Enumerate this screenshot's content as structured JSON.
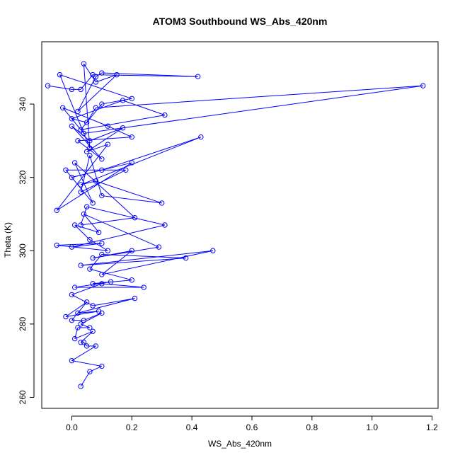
{
  "chart_data": {
    "type": "line",
    "title": "ATOM3 Southbound WS_Abs_420nm",
    "xlabel": "WS_Abs_420nm",
    "ylabel": "Theta (K)",
    "xlim": [
      -0.1,
      1.22
    ],
    "ylim": [
      257,
      357
    ],
    "x_ticks": [
      "0.0",
      "0.2",
      "0.4",
      "0.6",
      "0.8",
      "1.0",
      "1.2"
    ],
    "y_ticks": [
      "260",
      "280",
      "300",
      "320",
      "340"
    ],
    "grid": false,
    "marker": "open-circle",
    "colors": {
      "series": "#0000ff",
      "axes": "#000000"
    },
    "series": [
      {
        "points": [
          [
            -0.08,
            345
          ],
          [
            0.0,
            344
          ],
          [
            0.03,
            344
          ],
          [
            0.07,
            348
          ],
          [
            0.42,
            347.5
          ],
          [
            0.1,
            348.5
          ],
          [
            0.08,
            347.5
          ],
          [
            0.02,
            338
          ],
          [
            0.15,
            348
          ],
          [
            0.08,
            346
          ],
          [
            0.04,
            351
          ],
          [
            0.06,
            328
          ],
          [
            -0.04,
            348
          ],
          [
            0.2,
            341.5
          ],
          [
            0.1,
            340
          ],
          [
            0.03,
            333
          ],
          [
            0.31,
            337
          ],
          [
            0.17,
            341
          ],
          [
            0.0,
            336
          ],
          [
            0.05,
            335
          ],
          [
            0.08,
            339
          ],
          [
            1.17,
            345
          ],
          [
            0.04,
            332
          ],
          [
            -0.03,
            339
          ],
          [
            0.12,
            334
          ],
          [
            0.2,
            331
          ],
          [
            0.02,
            330
          ],
          [
            0.1,
            325
          ],
          [
            0.0,
            334
          ],
          [
            0.06,
            330
          ],
          [
            0.17,
            333.5
          ],
          [
            0.05,
            327
          ],
          [
            0.12,
            329
          ],
          [
            -0.05,
            311
          ],
          [
            0.2,
            324
          ],
          [
            0.0,
            320
          ],
          [
            0.1,
            322
          ],
          [
            0.43,
            331
          ],
          [
            0.03,
            318
          ],
          [
            0.08,
            319
          ],
          [
            0.3,
            313
          ],
          [
            0.1,
            315
          ],
          [
            0.06,
            326
          ],
          [
            0.03,
            316
          ],
          [
            0.18,
            322
          ],
          [
            -0.02,
            322
          ],
          [
            0.07,
            313
          ],
          [
            0.01,
            324
          ],
          [
            0.21,
            309
          ],
          [
            0.03,
            307
          ],
          [
            0.05,
            312
          ],
          [
            0.31,
            307
          ],
          [
            0.0,
            301
          ],
          [
            0.1,
            302
          ],
          [
            -0.05,
            301.5
          ],
          [
            0.12,
            300
          ],
          [
            0.06,
            303
          ],
          [
            0.01,
            307
          ],
          [
            0.09,
            305
          ],
          [
            0.04,
            310
          ],
          [
            0.29,
            301
          ],
          [
            0.07,
            298
          ],
          [
            0.2,
            300
          ],
          [
            0.1,
            293.5
          ],
          [
            0.47,
            300
          ],
          [
            0.03,
            296
          ],
          [
            0.38,
            298
          ],
          [
            0.1,
            299
          ],
          [
            0.06,
            295
          ],
          [
            0.2,
            292
          ],
          [
            0.07,
            291
          ],
          [
            0.13,
            291.5
          ],
          [
            0.01,
            290
          ],
          [
            0.24,
            290
          ],
          [
            0.1,
            291
          ],
          [
            0.0,
            288
          ],
          [
            0.07,
            285
          ],
          [
            0.21,
            287
          ],
          [
            0.02,
            283
          ],
          [
            0.09,
            283.5
          ],
          [
            -0.02,
            282
          ],
          [
            0.05,
            286
          ],
          [
            0.0,
            281
          ],
          [
            0.04,
            281
          ],
          [
            0.1,
            283
          ],
          [
            0.03,
            280
          ],
          [
            0.06,
            279
          ],
          [
            0.02,
            279
          ],
          [
            0.01,
            276
          ],
          [
            0.07,
            278
          ],
          [
            0.03,
            275
          ],
          [
            0.04,
            275
          ],
          [
            0.05,
            274
          ],
          [
            0.08,
            274
          ],
          [
            0.0,
            270
          ],
          [
            0.1,
            268.5
          ],
          [
            0.06,
            267
          ],
          [
            0.03,
            263
          ]
        ]
      }
    ]
  }
}
